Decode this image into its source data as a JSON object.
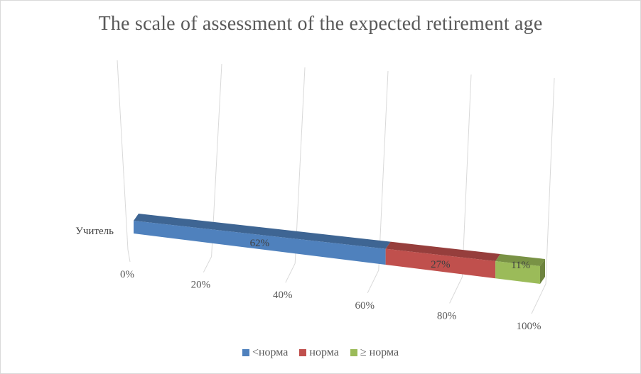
{
  "chart_data": {
    "type": "bar",
    "orientation": "horizontal",
    "stacked": true,
    "percent": true,
    "three_d": true,
    "title": "The scale of assessment of the expected retirement age",
    "categories": [
      "Учитель"
    ],
    "series": [
      {
        "name": "<норма",
        "values": [
          62
        ],
        "label": "62%",
        "color": "#4f81bd"
      },
      {
        "name": "норма",
        "values": [
          27
        ],
        "label": "27%",
        "color": "#c0504d"
      },
      {
        "name": "≥ норма",
        "values": [
          11
        ],
        "label": "11%",
        "color": "#9bbb59"
      }
    ],
    "x_ticks": [
      "0%",
      "20%",
      "40%",
      "60%",
      "80%",
      "100%"
    ],
    "xlim": [
      0,
      100
    ],
    "grid": true,
    "legend_position": "bottom"
  }
}
